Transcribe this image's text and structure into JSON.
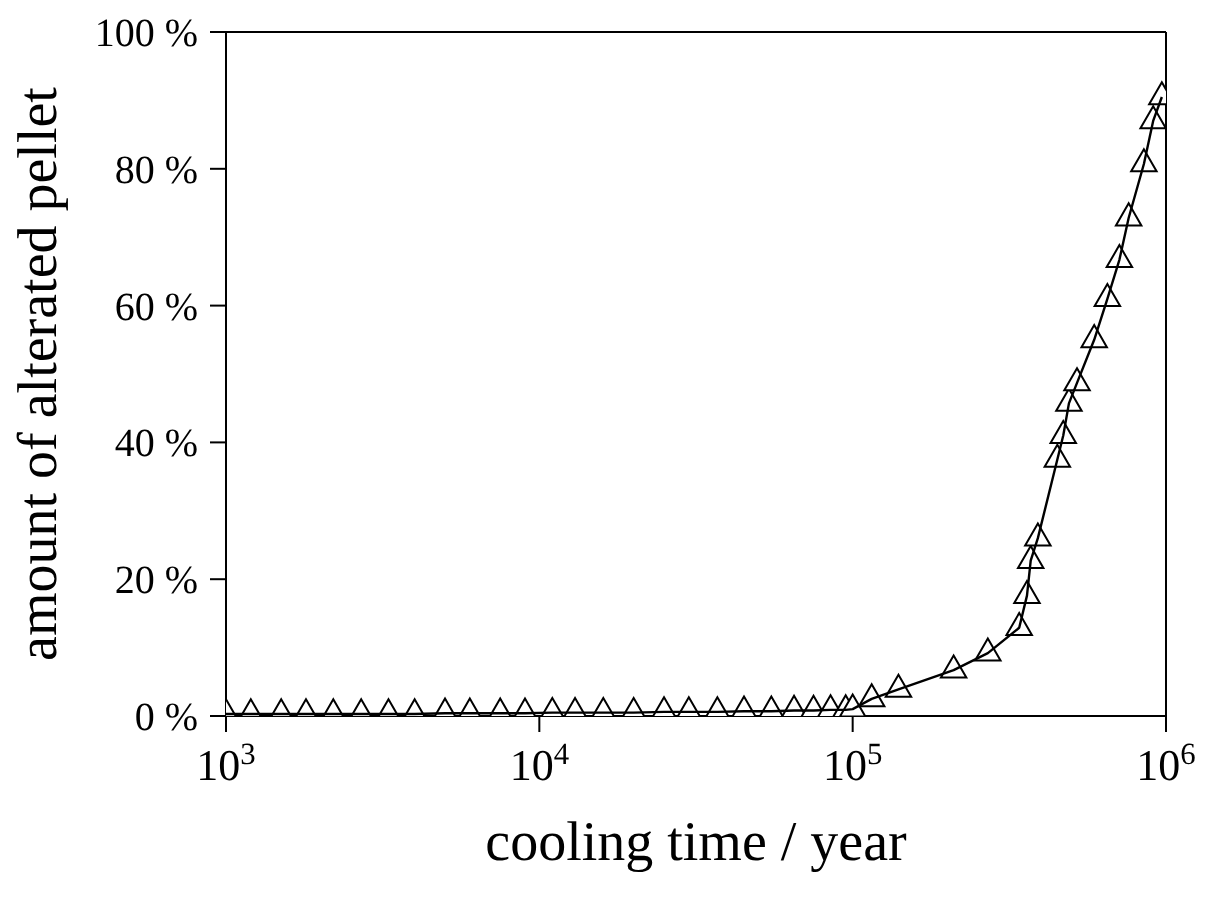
{
  "chart_data": {
    "type": "line",
    "xlabel": "cooling time / year",
    "ylabel": "amount of alterated pellet",
    "log": "x",
    "xlim": [
      1000,
      1000000
    ],
    "xticks": [
      {
        "value": 1000,
        "label": "10$^{3}$"
      },
      {
        "value": 10000,
        "label": "10$^{4}$"
      },
      {
        "value": 100000,
        "label": "10$^{5}$"
      },
      {
        "value": 1000000,
        "label": "10$^{6}$"
      }
    ],
    "ylim": [
      0,
      100
    ],
    "yticks": [
      {
        "value": 0,
        "label": "0 %"
      },
      {
        "value": 20,
        "label": "20 %"
      },
      {
        "value": 40,
        "label": "40 %"
      },
      {
        "value": 60,
        "label": "60 %"
      },
      {
        "value": 80,
        "label": "80 %"
      },
      {
        "value": 100,
        "label": "100 %"
      }
    ],
    "marker": "triangle",
    "line_style": "solid",
    "x": [
      1000,
      1200,
      1500,
      1800,
      2200,
      2700,
      3300,
      4000,
      5000,
      6000,
      7500,
      9000,
      11000,
      13000,
      16000,
      20000,
      25000,
      30000,
      37000,
      45000,
      55000,
      65000,
      75000,
      85000,
      95000,
      100000,
      115000,
      140000,
      210000,
      270000,
      340000,
      360000,
      370000,
      390000,
      450000,
      470000,
      490000,
      520000,
      590000,
      650000,
      710000,
      760000,
      850000,
      910000,
      970000
    ],
    "series": [
      {
        "color": "#000000",
        "values": [
          0.3,
          0.3,
          0.3,
          0.3,
          0.3,
          0.3,
          0.3,
          0.3,
          0.4,
          0.4,
          0.4,
          0.4,
          0.5,
          0.5,
          0.5,
          0.5,
          0.6,
          0.6,
          0.6,
          0.7,
          0.7,
          0.8,
          0.8,
          0.9,
          0.9,
          1,
          2.5,
          3.9,
          6.7,
          9.2,
          12.9,
          17.6,
          22.7,
          26,
          37.5,
          41,
          45.7,
          48.7,
          55,
          61,
          66.7,
          72.8,
          80.7,
          87,
          90.5
        ]
      }
    ]
  }
}
